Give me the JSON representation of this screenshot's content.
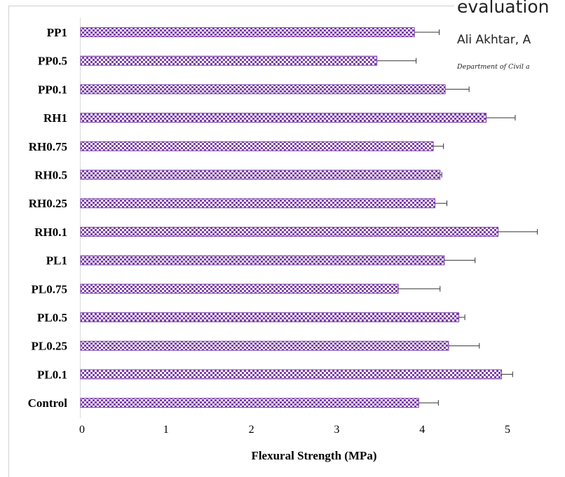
{
  "overlay": {
    "title_fragment": "evaluation",
    "authors_fragment": "Ali Akhtar, A",
    "department_fragment": "Department of Civil a"
  },
  "colors": {
    "bar_fill": "#7b3fa8",
    "bar_check": "#ffffff",
    "error_bar": "#333333"
  },
  "chart_data": {
    "type": "bar",
    "orientation": "horizontal",
    "categories": [
      "PP1",
      "PP0.5",
      "PP0.1",
      "RH1",
      "RH0.75",
      "RH0.5",
      "RH0.25",
      "RH0.1",
      "PL1",
      "PL0.75",
      "PL0.5",
      "PL0.25",
      "PL0.1",
      "Control"
    ],
    "values": [
      3.91,
      3.47,
      4.27,
      4.75,
      4.13,
      4.21,
      4.15,
      4.89,
      4.26,
      3.72,
      4.43,
      4.31,
      4.93,
      3.96
    ],
    "error_upper": [
      0.29,
      0.46,
      0.28,
      0.34,
      0.12,
      0.02,
      0.14,
      0.46,
      0.36,
      0.49,
      0.07,
      0.36,
      0.13,
      0.23
    ],
    "xlabel": "Flexural Strength (MPa)",
    "ylabel": "",
    "xlim": [
      0,
      5
    ],
    "xticks": [
      "0",
      "1",
      "2",
      "3",
      "4",
      "5"
    ],
    "grid": false,
    "legend": "none"
  }
}
